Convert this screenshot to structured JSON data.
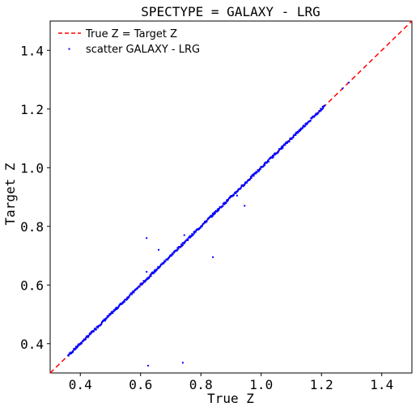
{
  "chart_data": {
    "type": "scatter",
    "title": "SPECTYPE = GALAXY - LRG",
    "xlabel": "True Z",
    "ylabel": "Target Z",
    "xlim": [
      0.3,
      1.5
    ],
    "ylim": [
      0.3,
      1.5
    ],
    "xticks": [
      0.4,
      0.6,
      0.8,
      1.0,
      1.2,
      1.4
    ],
    "yticks": [
      0.4,
      0.6,
      0.8,
      1.0,
      1.2,
      1.4
    ],
    "xtick_labels": [
      "0.4",
      "0.6",
      "0.8",
      "1.0",
      "1.2",
      "1.4"
    ],
    "ytick_labels": [
      "0.4",
      "0.6",
      "0.8",
      "1.0",
      "1.2",
      "1.4"
    ],
    "grid": false,
    "legend_position": "top-left",
    "series": [
      {
        "name": "True Z = Target Z",
        "kind": "dashed-line",
        "color": "#ff0000",
        "x": [
          0.3,
          1.5
        ],
        "y": [
          0.3,
          1.5
        ]
      },
      {
        "name": "scatter GALAXY - LRG",
        "kind": "scatter",
        "color": "#0000ff",
        "diagonal_range": [
          0.36,
          1.21
        ],
        "extra_diagonal_points": [
          [
            1.27,
            1.27
          ],
          [
            1.29,
            1.29
          ]
        ],
        "outliers": [
          [
            0.62,
            0.76
          ],
          [
            0.66,
            0.72
          ],
          [
            0.62,
            0.645
          ],
          [
            0.745,
            0.77
          ],
          [
            0.84,
            0.695
          ],
          [
            0.92,
            0.905
          ],
          [
            0.945,
            0.87
          ],
          [
            0.625,
            0.325
          ],
          [
            0.74,
            0.335
          ]
        ]
      }
    ]
  }
}
